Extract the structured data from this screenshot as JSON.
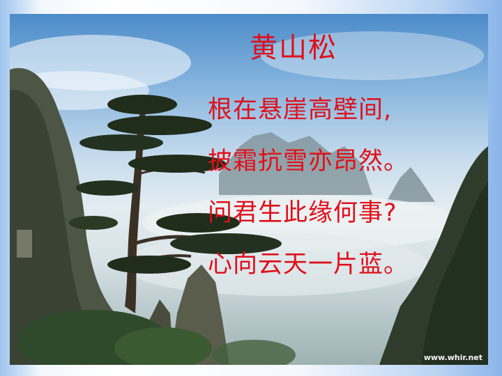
{
  "slide": {
    "title": "黄山松",
    "poem_lines": [
      "根在悬崖高壁间,",
      "披霜抗雪亦昂然。",
      "问君生此缘何事?",
      "心向云天一片蓝。"
    ],
    "watermark": "www.whir.net"
  },
  "colors": {
    "text": "#e0101a",
    "frame_blue": "#8ab5ea",
    "sky": "#7fb0dc"
  }
}
